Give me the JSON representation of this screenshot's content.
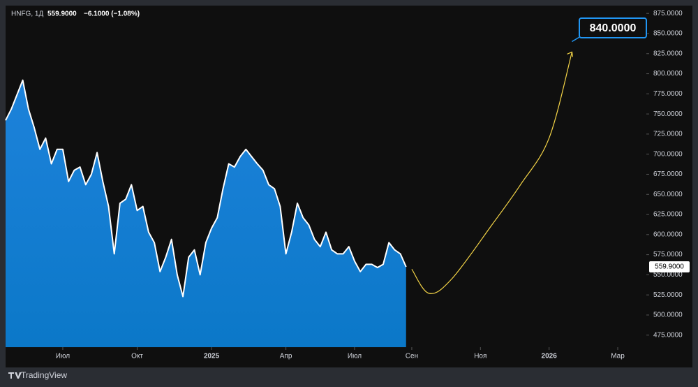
{
  "chart_data": {
    "type": "area",
    "symbol": "HNFG, 1Д",
    "last_price": "559.9000",
    "change": "−6.1000 (−1.08%)",
    "last_price_label": "559.9000",
    "annotation": "840.0000",
    "brand": "TradingView",
    "color": "#1e88e5",
    "line_color": "#ffffff",
    "xlim": [
      0,
      112
    ],
    "ylim": [
      460,
      883
    ],
    "values": [
      742,
      756,
      774,
      792,
      756,
      733,
      706,
      720,
      688,
      706,
      706,
      666,
      680,
      684,
      662,
      675,
      702,
      666,
      635,
      576,
      639,
      644,
      662,
      630,
      635,
      603,
      590,
      554,
      572,
      594,
      550,
      523,
      572,
      581,
      550,
      590,
      608,
      621,
      657,
      688,
      684,
      697,
      706,
      697,
      688,
      680,
      662,
      657,
      635,
      576,
      603,
      639,
      621,
      612,
      594,
      585,
      603,
      581,
      576,
      576,
      585,
      567,
      554,
      563,
      563,
      559,
      563,
      590,
      581,
      576,
      559.9
    ],
    "projection": {
      "color": "#f5d547",
      "x": [
        71,
        74,
        78,
        85,
        90,
        95,
        99
      ],
      "values": [
        557,
        527,
        545,
        612,
        662,
        720,
        827
      ]
    },
    "xticks": [
      {
        "value": 10,
        "label": "Июл"
      },
      {
        "value": 23,
        "label": "Окт"
      },
      {
        "value": 36,
        "label": "2025"
      },
      {
        "value": 49,
        "label": "Апр"
      },
      {
        "value": 61,
        "label": "Июл"
      },
      {
        "value": 71,
        "label": "Сен"
      },
      {
        "value": 83,
        "label": "Ноя"
      },
      {
        "value": 95,
        "label": "2026"
      },
      {
        "value": 107,
        "label": "Мар"
      }
    ],
    "yticks": [
      {
        "value": 475,
        "label": "475.0000"
      },
      {
        "value": 500,
        "label": "500.0000"
      },
      {
        "value": 525,
        "label": "525.0000"
      },
      {
        "value": 550,
        "label": "550.0000"
      },
      {
        "value": 575,
        "label": "575.0000"
      },
      {
        "value": 600,
        "label": "600.0000"
      },
      {
        "value": 625,
        "label": "625.0000"
      },
      {
        "value": 650,
        "label": "650.0000"
      },
      {
        "value": 675,
        "label": "675.0000"
      },
      {
        "value": 700,
        "label": "700.0000"
      },
      {
        "value": 725,
        "label": "725.0000"
      },
      {
        "value": 750,
        "label": "750.0000"
      },
      {
        "value": 775,
        "label": "775.0000"
      },
      {
        "value": 800,
        "label": "800.0000"
      },
      {
        "value": 825,
        "label": "825.0000"
      },
      {
        "value": 850,
        "label": "850.0000"
      },
      {
        "value": 875,
        "label": "875.0000"
      }
    ]
  }
}
